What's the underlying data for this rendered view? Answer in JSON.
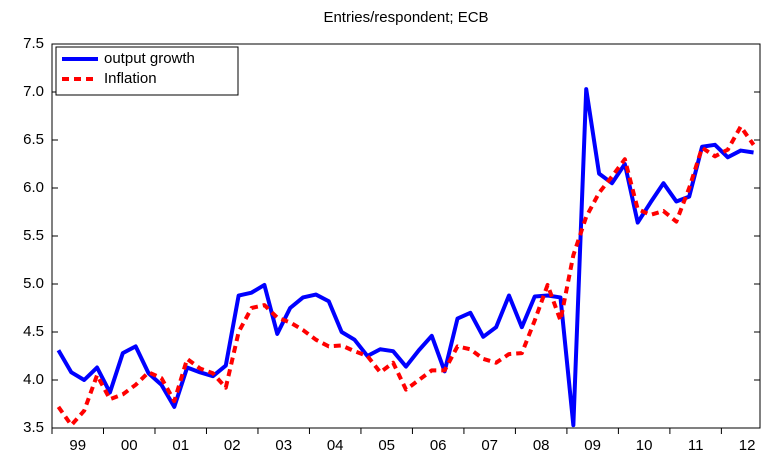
{
  "chart_data": {
    "type": "line",
    "title": "Entries/respondent; ECB",
    "categories": [
      null,
      "99",
      null,
      null,
      null,
      "00",
      null,
      null,
      null,
      "01",
      null,
      null,
      null,
      "02",
      null,
      null,
      null,
      "03",
      null,
      null,
      null,
      "04",
      null,
      null,
      null,
      "05",
      null,
      null,
      null,
      "06",
      null,
      null,
      null,
      "07",
      null,
      null,
      null,
      "08",
      null,
      null,
      null,
      "09",
      null,
      null,
      null,
      "10",
      null,
      null,
      null,
      "11",
      null,
      null,
      null,
      "12",
      null
    ],
    "series": [
      {
        "name": "output growth",
        "color": "#0000ff",
        "dash": "solid",
        "values": [
          4.31,
          4.08,
          4.0,
          4.13,
          3.87,
          4.28,
          4.35,
          4.07,
          3.95,
          3.72,
          4.13,
          4.08,
          4.04,
          4.15,
          4.88,
          4.91,
          4.99,
          4.48,
          4.75,
          4.86,
          4.89,
          4.82,
          4.5,
          4.42,
          4.25,
          4.32,
          4.3,
          4.14,
          4.31,
          4.46,
          4.09,
          4.64,
          4.7,
          4.45,
          4.55,
          4.88,
          4.55,
          4.87,
          4.88,
          4.86,
          3.53,
          7.03,
          6.15,
          6.05,
          6.25,
          5.64,
          5.85,
          6.05,
          5.86,
          5.91,
          6.43,
          6.45,
          6.32,
          6.39,
          6.37
        ]
      },
      {
        "name": "Inflation",
        "color": "#ff0000",
        "dash": "dotted",
        "values": [
          3.72,
          3.53,
          3.68,
          4.05,
          3.8,
          3.85,
          3.95,
          4.08,
          4.02,
          3.78,
          4.22,
          4.12,
          4.07,
          3.92,
          4.5,
          4.75,
          4.78,
          4.65,
          4.6,
          4.52,
          4.42,
          4.35,
          4.36,
          4.3,
          4.25,
          4.08,
          4.18,
          3.9,
          4.0,
          4.1,
          4.1,
          4.35,
          4.32,
          4.22,
          4.18,
          4.27,
          4.28,
          4.62,
          4.99,
          4.62,
          5.3,
          5.7,
          5.95,
          6.12,
          6.3,
          5.78,
          5.72,
          5.76,
          5.65,
          6.0,
          6.42,
          6.33,
          6.4,
          6.64,
          6.45
        ]
      }
    ],
    "ylim": [
      3.5,
      7.5
    ],
    "yticks": [
      3.5,
      {
        "value": 4,
        "label": "4.0"
      },
      4.5,
      {
        "value": 5,
        "label": "5.0"
      },
      5.5,
      {
        "value": 6,
        "label": "6.0"
      },
      6.5,
      {
        "value": 7,
        "label": "7.0"
      },
      7.5
    ],
    "legend": "upper left"
  }
}
